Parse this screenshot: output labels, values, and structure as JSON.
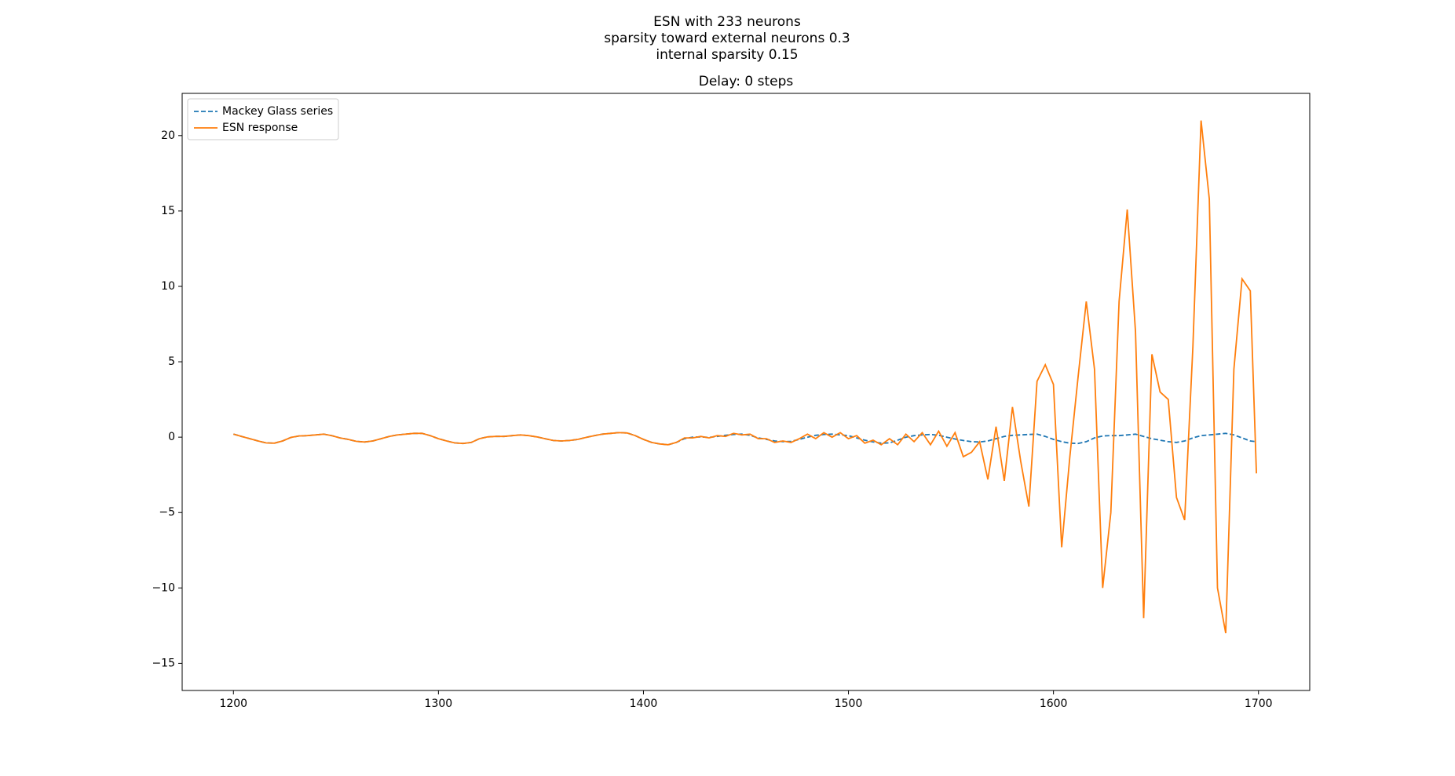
{
  "chart_data": {
    "type": "line",
    "suptitle": [
      "ESN with 233 neurons",
      "sparsity toward external neurons 0.3",
      "internal sparsity 0.15"
    ],
    "title": "Delay: 0 steps",
    "x": [
      1200,
      1204,
      1208,
      1212,
      1216,
      1220,
      1224,
      1228,
      1232,
      1236,
      1240,
      1244,
      1248,
      1252,
      1256,
      1260,
      1264,
      1268,
      1272,
      1276,
      1280,
      1284,
      1288,
      1292,
      1296,
      1300,
      1304,
      1308,
      1312,
      1316,
      1320,
      1324,
      1328,
      1332,
      1336,
      1340,
      1344,
      1348,
      1352,
      1356,
      1360,
      1364,
      1368,
      1372,
      1376,
      1380,
      1384,
      1388,
      1392,
      1396,
      1400,
      1404,
      1408,
      1412,
      1416,
      1420,
      1424,
      1428,
      1432,
      1436,
      1440,
      1444,
      1448,
      1452,
      1456,
      1460,
      1464,
      1468,
      1472,
      1476,
      1480,
      1484,
      1488,
      1492,
      1496,
      1500,
      1504,
      1508,
      1512,
      1516,
      1520,
      1524,
      1528,
      1532,
      1536,
      1540,
      1544,
      1548,
      1552,
      1556,
      1560,
      1564,
      1568,
      1572,
      1576,
      1580,
      1584,
      1588,
      1592,
      1596,
      1600,
      1604,
      1608,
      1612,
      1616,
      1620,
      1624,
      1628,
      1632,
      1636,
      1640,
      1644,
      1648,
      1652,
      1656,
      1660,
      1664,
      1668,
      1672,
      1676,
      1680,
      1684,
      1688,
      1692,
      1696,
      1699
    ],
    "series": [
      {
        "name": "Mackey Glass series",
        "color": "#1f77b4",
        "dash": true,
        "values": [
          0.2,
          0.05,
          -0.1,
          -0.25,
          -0.38,
          -0.4,
          -0.25,
          -0.02,
          0.08,
          0.1,
          0.15,
          0.2,
          0.1,
          -0.05,
          -0.15,
          -0.28,
          -0.32,
          -0.25,
          -0.1,
          0.05,
          0.15,
          0.2,
          0.25,
          0.25,
          0.1,
          -0.1,
          -0.25,
          -0.38,
          -0.42,
          -0.35,
          -0.1,
          0.02,
          0.05,
          0.05,
          0.1,
          0.15,
          0.1,
          0.02,
          -0.1,
          -0.22,
          -0.25,
          -0.22,
          -0.15,
          -0.02,
          0.1,
          0.2,
          0.25,
          0.3,
          0.28,
          0.1,
          -0.15,
          -0.35,
          -0.45,
          -0.5,
          -0.35,
          -0.1,
          0.0,
          0.02,
          -0.02,
          0.05,
          0.12,
          0.18,
          0.2,
          0.12,
          -0.05,
          -0.15,
          -0.25,
          -0.3,
          -0.28,
          -0.15,
          0.0,
          0.12,
          0.18,
          0.2,
          0.15,
          0.1,
          -0.05,
          -0.2,
          -0.32,
          -0.4,
          -0.38,
          -0.2,
          0.0,
          0.1,
          0.15,
          0.18,
          0.12,
          0.0,
          -0.12,
          -0.22,
          -0.3,
          -0.32,
          -0.25,
          -0.1,
          0.05,
          0.12,
          0.15,
          0.18,
          0.2,
          0.05,
          -0.15,
          -0.3,
          -0.4,
          -0.42,
          -0.3,
          -0.05,
          0.08,
          0.1,
          0.1,
          0.15,
          0.2,
          0.05,
          -0.1,
          -0.2,
          -0.3,
          -0.35,
          -0.25,
          -0.05,
          0.1,
          0.15,
          0.2,
          0.25,
          0.15,
          -0.05,
          -0.25,
          -0.3
        ]
      },
      {
        "name": "ESN response",
        "color": "#ff7f0e",
        "dash": false,
        "values": [
          0.2,
          0.05,
          -0.1,
          -0.25,
          -0.38,
          -0.4,
          -0.25,
          -0.02,
          0.08,
          0.1,
          0.15,
          0.2,
          0.1,
          -0.05,
          -0.15,
          -0.28,
          -0.32,
          -0.25,
          -0.1,
          0.05,
          0.15,
          0.2,
          0.25,
          0.25,
          0.1,
          -0.1,
          -0.25,
          -0.38,
          -0.42,
          -0.35,
          -0.1,
          0.02,
          0.05,
          0.05,
          0.1,
          0.15,
          0.1,
          0.02,
          -0.1,
          -0.22,
          -0.25,
          -0.22,
          -0.15,
          -0.02,
          0.1,
          0.2,
          0.25,
          0.3,
          0.28,
          0.1,
          -0.15,
          -0.35,
          -0.45,
          -0.5,
          -0.35,
          -0.05,
          -0.05,
          0.05,
          -0.05,
          0.1,
          0.05,
          0.25,
          0.15,
          0.2,
          -0.1,
          -0.1,
          -0.35,
          -0.25,
          -0.35,
          -0.1,
          0.2,
          -0.1,
          0.3,
          0.0,
          0.3,
          -0.1,
          0.1,
          -0.4,
          -0.2,
          -0.5,
          -0.1,
          -0.5,
          0.2,
          -0.3,
          0.3,
          -0.5,
          0.4,
          -0.6,
          0.3,
          -1.3,
          -1.0,
          -0.3,
          -2.8,
          0.7,
          -2.9,
          2.0,
          -1.6,
          -4.6,
          3.7,
          4.8,
          3.5,
          -7.3,
          -1.3,
          4.0,
          9.0,
          4.5,
          -10.0,
          -5.0,
          9.0,
          15.1,
          7.0,
          -12.0,
          5.5,
          3.0,
          2.5,
          -4.0,
          -5.5,
          6.0,
          21.0,
          15.8,
          -10.0,
          -13.0,
          4.5,
          10.5,
          9.7,
          -2.4
        ]
      }
    ],
    "xlim": [
      1175,
      1725
    ],
    "ylim": [
      -16.8,
      22.8
    ],
    "xticks": [
      1200,
      1300,
      1400,
      1500,
      1600,
      1700
    ],
    "yticks": [
      {
        "value": -15,
        "label": "−15"
      },
      {
        "value": -10,
        "label": "−10"
      },
      {
        "value": -5,
        "label": "−5"
      },
      0,
      5,
      10,
      15,
      20
    ],
    "legend": "upper left"
  }
}
